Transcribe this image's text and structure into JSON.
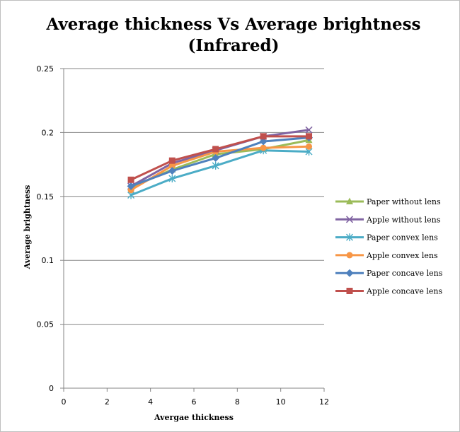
{
  "chart_data": {
    "type": "line",
    "title_line1": "Average thickness Vs Average brightness",
    "title_line2": "(Infrared)",
    "xlabel": "Avergae thickness",
    "ylabel": "Average brightness",
    "xlim": [
      0,
      12
    ],
    "ylim": [
      0,
      0.25
    ],
    "xticks": [
      0,
      2,
      4,
      6,
      8,
      10,
      12
    ],
    "yticks": [
      0,
      0.05,
      0.1,
      0.15,
      0.2,
      0.25
    ],
    "ytick_labels": [
      "0",
      "0.05",
      "0.1",
      "0.15",
      "0.2",
      "0.25"
    ],
    "grid": "horizontal",
    "legend_position": "right",
    "x": [
      3.1,
      5.0,
      7.0,
      9.2,
      11.3
    ],
    "series": [
      {
        "name": "Paper without lens",
        "color": "#9bbb59",
        "marker": "triangle",
        "values": [
          0.157,
          0.171,
          0.183,
          0.187,
          0.194
        ]
      },
      {
        "name": "Apple without lens",
        "color": "#8064a2",
        "marker": "x",
        "values": [
          0.158,
          0.176,
          0.186,
          0.197,
          0.202
        ]
      },
      {
        "name": "Paper convex lens",
        "color": "#4bacc6",
        "marker": "star",
        "values": [
          0.151,
          0.164,
          0.174,
          0.186,
          0.185
        ]
      },
      {
        "name": "Apple convex lens",
        "color": "#f79646",
        "marker": "circle",
        "values": [
          0.155,
          0.174,
          0.185,
          0.188,
          0.189
        ]
      },
      {
        "name": "Paper concave lens",
        "color": "#4f81bd",
        "marker": "diamond",
        "values": [
          0.158,
          0.17,
          0.18,
          0.193,
          0.196
        ]
      },
      {
        "name": "Apple concave lens",
        "color": "#c0504d",
        "marker": "square",
        "values": [
          0.163,
          0.178,
          0.187,
          0.197,
          0.197
        ]
      }
    ]
  }
}
